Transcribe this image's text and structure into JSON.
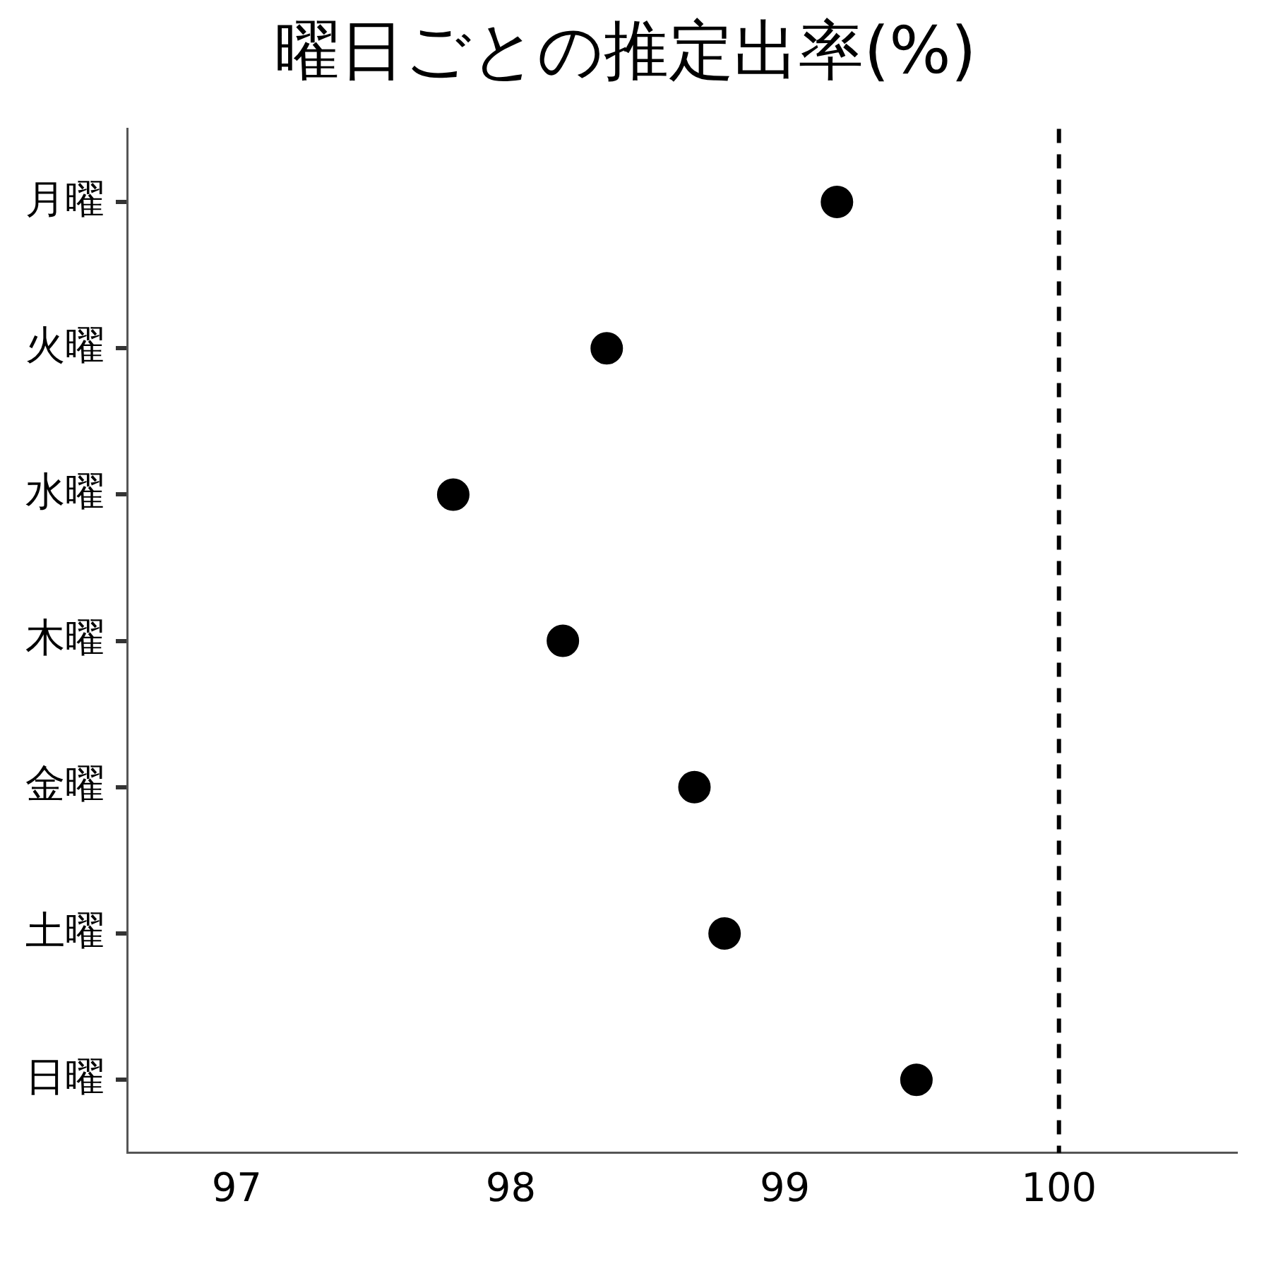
{
  "chart_data": {
    "type": "scatter",
    "title": "曜日ごとの推定出率(%)",
    "categories": [
      "月曜",
      "火曜",
      "水曜",
      "木曜",
      "金曜",
      "土曜",
      "日曜"
    ],
    "series": [
      {
        "color": "#000000",
        "values": [
          99.19,
          98.35,
          97.79,
          98.19,
          98.67,
          98.78,
          99.48
        ]
      }
    ],
    "orientation": "horizontal",
    "marker": "circle",
    "xlim": [
      96.6,
      100.65
    ],
    "xticks": [
      97,
      98,
      99,
      100
    ],
    "ref_lines": [
      {
        "axis": "x",
        "value": 100,
        "line_style": "dashed",
        "color": "#000000"
      }
    ],
    "grid": false,
    "legend": false
  }
}
